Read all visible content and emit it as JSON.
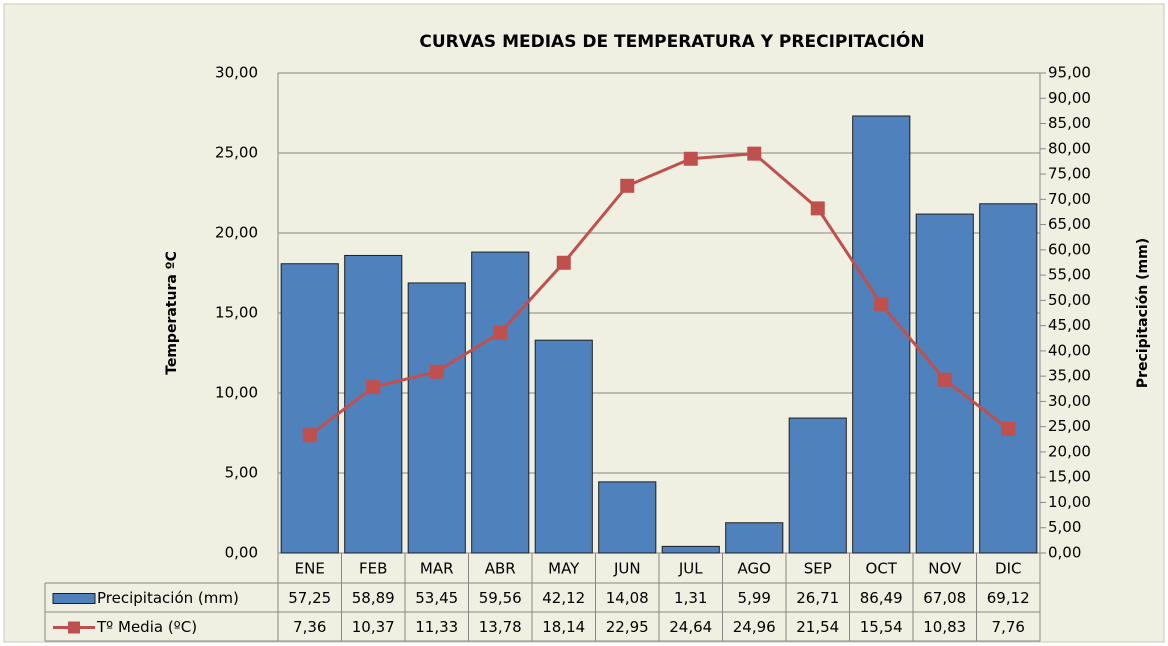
{
  "chart_data": {
    "type": "combo",
    "title": "CURVAS MEDIAS DE TEMPERATURA  Y PRECIPITACIÓN",
    "ylabel": "Temperatura ºC",
    "y2label": "Precipitación (mm)",
    "categories": [
      "ENE",
      "FEB",
      "MAR",
      "ABR",
      "MAY",
      "JUN",
      "JUL",
      "AGO",
      "SEP",
      "OCT",
      "NOV",
      "DIC"
    ],
    "ylim": [
      0,
      30
    ],
    "yticks": [
      {
        "value": 0,
        "label": "0,00"
      },
      {
        "value": 5,
        "label": "5,00"
      },
      {
        "value": 10,
        "label": "10,00"
      },
      {
        "value": 15,
        "label": "15,00"
      },
      {
        "value": 20,
        "label": "20,00"
      },
      {
        "value": 25,
        "label": "25,00"
      },
      {
        "value": 30,
        "label": "30,00"
      }
    ],
    "y2lim": [
      0,
      95
    ],
    "y2ticks": [
      {
        "value": 0,
        "label": "0,00"
      },
      {
        "value": 5,
        "label": "5,00"
      },
      {
        "value": 10,
        "label": "10,00"
      },
      {
        "value": 15,
        "label": "15,00"
      },
      {
        "value": 20,
        "label": "20,00"
      },
      {
        "value": 25,
        "label": "25,00"
      },
      {
        "value": 30,
        "label": "30,00"
      },
      {
        "value": 35,
        "label": "35,00"
      },
      {
        "value": 40,
        "label": "40,00"
      },
      {
        "value": 45,
        "label": "45,00"
      },
      {
        "value": 50,
        "label": "50,00"
      },
      {
        "value": 55,
        "label": "55,00"
      },
      {
        "value": 60,
        "label": "60,00"
      },
      {
        "value": 65,
        "label": "65,00"
      },
      {
        "value": 70,
        "label": "70,00"
      },
      {
        "value": 75,
        "label": "75,00"
      },
      {
        "value": 80,
        "label": "80,00"
      },
      {
        "value": 85,
        "label": "85,00"
      },
      {
        "value": 90,
        "label": "90,00"
      },
      {
        "value": 95,
        "label": "95,00"
      }
    ],
    "grid": true,
    "series": [
      {
        "name": "Precipitación (mm)",
        "type": "bar",
        "axis": "y2",
        "color": "#4f81bd",
        "values": [
          57.25,
          58.89,
          53.45,
          59.56,
          42.12,
          14.08,
          1.31,
          5.99,
          26.71,
          86.49,
          67.08,
          69.12
        ],
        "value_labels": [
          "57,25",
          "58,89",
          "53,45",
          "59,56",
          "42,12",
          "14,08",
          "1,31",
          "5,99",
          "26,71",
          "86,49",
          "67,08",
          "69,12"
        ]
      },
      {
        "name": "Tº Media (ºC)",
        "type": "line",
        "axis": "y",
        "color": "#c0504d",
        "values": [
          7.36,
          10.37,
          11.33,
          13.78,
          18.14,
          22.95,
          24.64,
          24.96,
          21.54,
          15.54,
          10.83,
          7.76
        ],
        "value_labels": [
          "7,36",
          "10,37",
          "11,33",
          "13,78",
          "18,14",
          "22,95",
          "24,64",
          "24,96",
          "21,54",
          "15,54",
          "10,83",
          "7,76"
        ]
      }
    ]
  }
}
